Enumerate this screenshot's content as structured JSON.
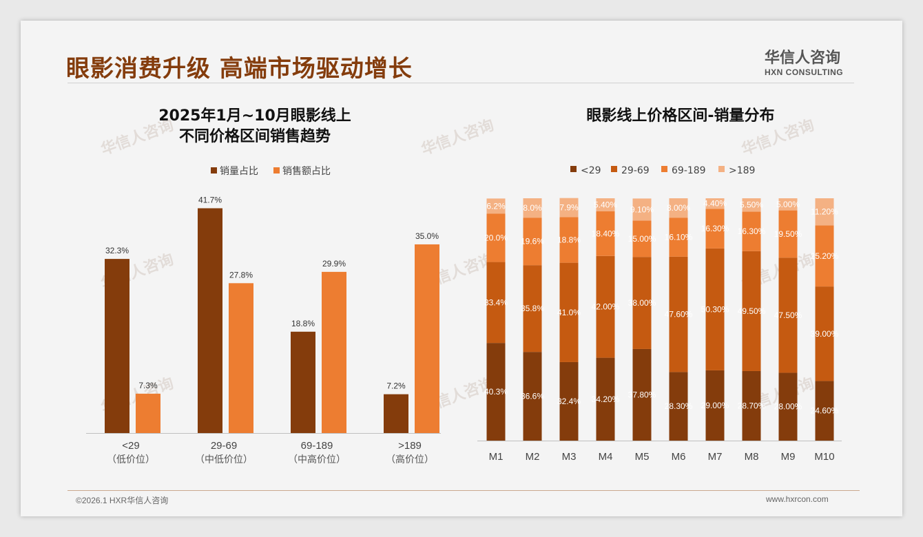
{
  "header": {
    "title": "眼影消费升级 高端市场驱动增长",
    "logo_cn": "华信人咨询",
    "logo_en": "HXN CONSULTING"
  },
  "footer": {
    "copyright": "©2026.1 HXR华信人咨询",
    "website": "www.hxrcon.com"
  },
  "colors": {
    "dark": "#843C0C",
    "light": "#ED7D31",
    "s1": "#843C0C",
    "s2": "#C55A11",
    "s3": "#ED7D31",
    "s4": "#F4B183"
  },
  "chart_data": [
    {
      "type": "bar",
      "title": [
        "2025年1月~10月眼影线上",
        "不同价格区间销售趋势"
      ],
      "categories": [
        "<29",
        "29-69",
        "69-189",
        ">189"
      ],
      "sublabels": [
        "（低价位）",
        "（中低价位）",
        "（中高价位）",
        "（高价位）"
      ],
      "series": [
        {
          "name": "销量占比",
          "values": [
            32.3,
            41.7,
            18.8,
            7.2
          ]
        },
        {
          "name": "销售额占比",
          "values": [
            7.3,
            27.8,
            29.9,
            35.0
          ]
        }
      ],
      "legend": "top",
      "ylim": [
        0,
        45
      ],
      "unit": "%"
    },
    {
      "type": "bar",
      "stacked": true,
      "title": "眼影线上价格区间-销量分布",
      "categories": [
        "M1",
        "M2",
        "M3",
        "M4",
        "M5",
        "M6",
        "M7",
        "M8",
        "M9",
        "M10"
      ],
      "series": [
        {
          "name": "<29",
          "values": [
            40.3,
            36.6,
            32.4,
            34.2,
            37.8,
            28.3,
            29.0,
            28.7,
            28.0,
            24.6
          ],
          "labels": [
            "40.3%",
            "36.6%",
            "32.4%",
            "34.20%",
            "37.80%",
            "28.30%",
            "29.00%",
            "28.70%",
            "28.00%",
            "24.60%"
          ]
        },
        {
          "name": "29-69",
          "values": [
            33.4,
            35.8,
            41.0,
            42.0,
            38.0,
            47.6,
            50.3,
            49.5,
            47.5,
            39.0
          ],
          "labels": [
            "33.4%",
            "35.8%",
            "41.0%",
            "42.00%",
            "38.00%",
            "47.60%",
            "50.30%",
            "49.50%",
            "47.50%",
            "39.00%"
          ]
        },
        {
          "name": "69-189",
          "values": [
            20.0,
            19.6,
            18.8,
            18.4,
            15.0,
            16.1,
            16.3,
            16.3,
            19.5,
            25.2
          ],
          "labels": [
            "20.0%",
            "19.6%",
            "18.8%",
            "18.40%",
            "15.00%",
            "16.10%",
            "16.30%",
            "16.30%",
            "19.50%",
            "25.20%"
          ]
        },
        {
          "name": ">189",
          "values": [
            6.2,
            8.0,
            7.9,
            5.4,
            9.1,
            8.0,
            4.4,
            5.5,
            5.0,
            11.2
          ],
          "labels": [
            "6.2%",
            "8.0%",
            "7.9%",
            "5.40%",
            "9.10%",
            "8.00%",
            "4.40%",
            "5.50%",
            "5.00%",
            "11.20%"
          ]
        }
      ],
      "legend": "top",
      "ylim": [
        0,
        100
      ]
    }
  ]
}
